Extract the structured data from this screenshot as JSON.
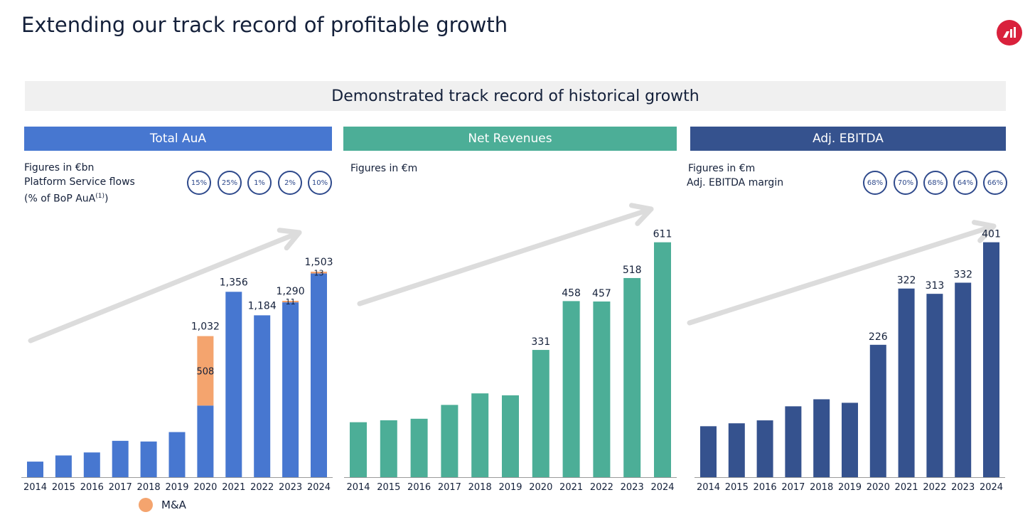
{
  "page": {
    "title": "Extending our track record of profitable growth",
    "banner": "Demonstrated track record of historical growth",
    "logo_color": "#d9213c"
  },
  "colors": {
    "aua": "#4777d0",
    "ma": "#f4a46e",
    "rev": "#4cae97",
    "ebitda": "#35528e",
    "arrow": "#dcdcdc",
    "circle": "#2f4a8c"
  },
  "panels": {
    "aua": {
      "header": "Total AuA",
      "note1": "Figures in €bn",
      "note2": "Platform Service flows",
      "note3": "(% of BoP AuA",
      "note3_sup": "(1)",
      "note3_end": ")",
      "circles": [
        "15%",
        "25%",
        "1%",
        "2%",
        "10%"
      ]
    },
    "rev": {
      "header": "Net Revenues",
      "note1": "Figures in €m"
    },
    "ebitda": {
      "header": "Adj. EBITDA",
      "note1": "Figures in €m",
      "note2": "Adj. EBITDA margin",
      "circles": [
        "68%",
        "70%",
        "68%",
        "64%",
        "66%"
      ]
    }
  },
  "legend": {
    "label": "M&A"
  },
  "chart_data": [
    {
      "type": "bar",
      "title": "Total AuA",
      "unit": "€bn",
      "categories": [
        "2014",
        "2015",
        "2016",
        "2017",
        "2018",
        "2019",
        "2020",
        "2021",
        "2022",
        "2023",
        "2024"
      ],
      "series": [
        {
          "values": [
            114,
            159,
            181,
            266,
            261,
            330,
            524,
            1356,
            1184,
            1279,
            1490
          ]
        },
        {
          "name": "M&A",
          "values": [
            0,
            0,
            0,
            0,
            0,
            0,
            508,
            0,
            0,
            11,
            13
          ]
        }
      ],
      "totals": [
        null,
        null,
        null,
        null,
        null,
        null,
        "1,032",
        "1,356",
        "1,184",
        "1,290",
        "1,503"
      ],
      "segment_labels": [
        null,
        null,
        null,
        null,
        null,
        null,
        "508",
        null,
        null,
        "11",
        "13"
      ],
      "ylim": [
        0,
        1550
      ]
    },
    {
      "type": "bar",
      "title": "Net Revenues",
      "unit": "€m",
      "categories": [
        "2014",
        "2015",
        "2016",
        "2017",
        "2018",
        "2019",
        "2020",
        "2021",
        "2022",
        "2023",
        "2024"
      ],
      "values": [
        143,
        148,
        152,
        188,
        218,
        213,
        331,
        458,
        457,
        518,
        611
      ],
      "labels": [
        null,
        null,
        null,
        null,
        null,
        null,
        "331",
        "458",
        "457",
        "518",
        "611"
      ],
      "ylim": [
        0,
        640
      ]
    },
    {
      "type": "bar",
      "title": "Adj. EBITDA",
      "unit": "€m",
      "categories": [
        "2014",
        "2015",
        "2016",
        "2017",
        "2018",
        "2019",
        "2020",
        "2021",
        "2022",
        "2023",
        "2024"
      ],
      "values": [
        87,
        92,
        97,
        121,
        133,
        127,
        226,
        322,
        313,
        332,
        401
      ],
      "labels": [
        null,
        null,
        null,
        null,
        null,
        null,
        "226",
        "322",
        "313",
        "332",
        "401"
      ],
      "ylim": [
        0,
        420
      ]
    }
  ]
}
